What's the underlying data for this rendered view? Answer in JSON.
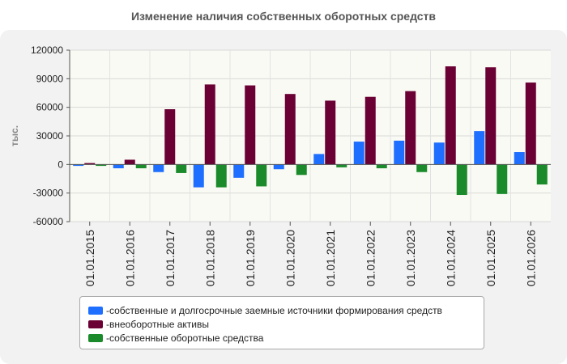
{
  "chart_data": {
    "type": "bar",
    "title": "Изменение наличия собственных оборотных средств",
    "ylabel": "тыс.",
    "xlabel": "",
    "ylim": [
      -60000,
      120000
    ],
    "yticks": [
      120000,
      90000,
      60000,
      30000,
      0,
      -30000,
      -60000
    ],
    "categories": [
      "01.01.2015",
      "01.01.2016",
      "01.01.2017",
      "01.01.2018",
      "01.01.2019",
      "01.01.2020",
      "01.01.2021",
      "01.01.2022",
      "01.01.2023",
      "01.01.2024",
      "01.01.2025",
      "01.01.2026"
    ],
    "grid": true,
    "legend_position": "bottom",
    "series": [
      {
        "name": "собственные и долгосрочные заемные источники формирования средств",
        "color": "#1e6fff",
        "values": [
          -1500,
          -4000,
          -8000,
          -24000,
          -14000,
          -5000,
          11000,
          24000,
          25000,
          23000,
          35000,
          13000
        ]
      },
      {
        "name": "внеоборотные активы",
        "color": "#6b0034",
        "values": [
          1500,
          5000,
          58000,
          84000,
          83000,
          74000,
          67000,
          71000,
          77000,
          103000,
          102000,
          86000
        ]
      },
      {
        "name": "собственные оборотные средства",
        "color": "#1a8a2a",
        "values": [
          -1500,
          -4000,
          -9000,
          -24000,
          -23000,
          -11000,
          -3000,
          -4000,
          -8000,
          -32000,
          -31000,
          -21000
        ]
      }
    ]
  }
}
